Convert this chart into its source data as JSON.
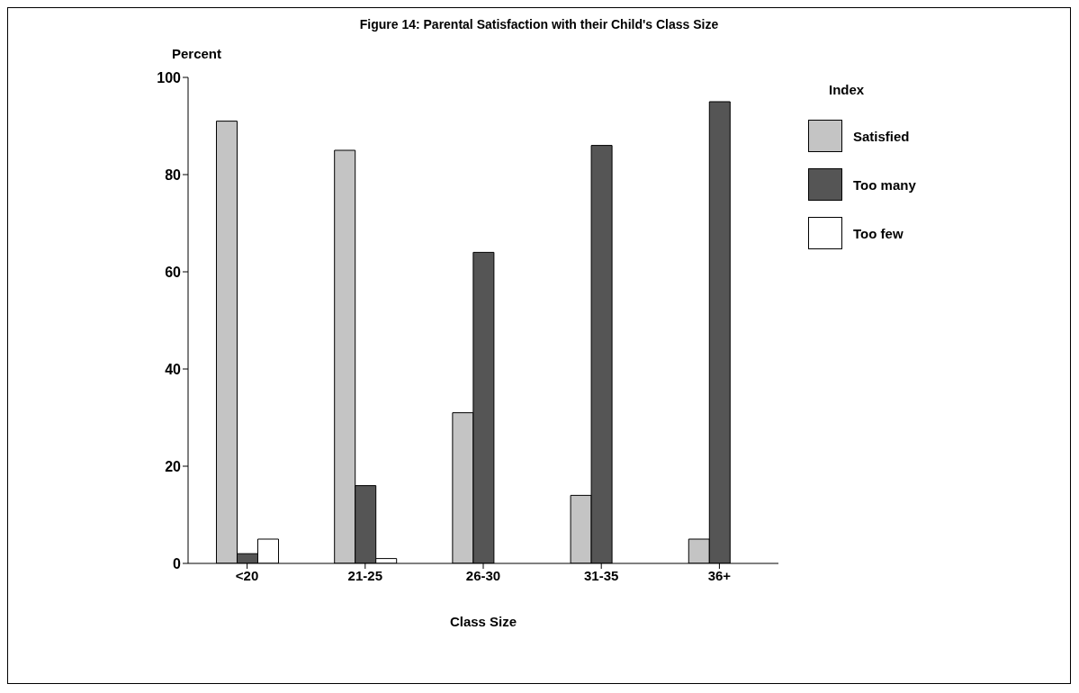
{
  "chart_data": {
    "type": "bar",
    "title": "Figure 14: Parental Satisfaction with their Child's Class Size",
    "xlabel": "Class Size",
    "ylabel": "Percent",
    "legend_title": "Index",
    "categories": [
      "<20",
      "21-25",
      "26-30",
      "31-35",
      "36+"
    ],
    "series": [
      {
        "name": "Satisfied",
        "color": "#c4c4c4",
        "values": [
          91,
          85,
          31,
          14,
          5
        ]
      },
      {
        "name": "Too many",
        "color": "#555555",
        "values": [
          2,
          16,
          64,
          86,
          95
        ]
      },
      {
        "name": "Too few",
        "color": "#ffffff",
        "values": [
          5,
          1,
          null,
          null,
          null
        ]
      }
    ],
    "ylim": [
      0,
      100
    ],
    "yticks": [
      0,
      20,
      40,
      60,
      80,
      100
    ],
    "grid": false,
    "legend": "top right"
  }
}
